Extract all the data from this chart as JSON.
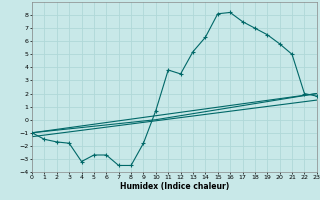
{
  "xlabel": "Humidex (Indice chaleur)",
  "bg_color": "#c8e8e8",
  "grid_color": "#b0d8d8",
  "line_color": "#006868",
  "xlim": [
    0,
    23
  ],
  "ylim": [
    -4,
    9
  ],
  "xticks": [
    0,
    1,
    2,
    3,
    4,
    5,
    6,
    7,
    8,
    9,
    10,
    11,
    12,
    13,
    14,
    15,
    16,
    17,
    18,
    19,
    20,
    21,
    22,
    23
  ],
  "yticks": [
    -4,
    -3,
    -2,
    -1,
    0,
    1,
    2,
    3,
    4,
    5,
    6,
    7,
    8
  ],
  "series1_x": [
    0,
    1,
    2,
    3,
    4,
    5,
    6,
    7,
    8,
    9,
    10,
    11,
    12,
    13,
    14,
    15,
    16,
    17,
    18,
    19,
    20,
    21,
    22,
    23
  ],
  "series1_y": [
    -1,
    -1.5,
    -1.7,
    -1.8,
    -3.2,
    -2.7,
    -2.7,
    -3.5,
    -3.5,
    -1.8,
    0.7,
    3.8,
    3.5,
    5.2,
    6.3,
    8.1,
    8.2,
    7.5,
    7.0,
    6.5,
    5.8,
    5.0,
    2.0,
    1.8
  ],
  "series2_x": [
    0,
    23
  ],
  "series2_y": [
    -1.0,
    2.0
  ],
  "series3_x": [
    0,
    10,
    23
  ],
  "series3_y": [
    -1.0,
    0.0,
    2.0
  ],
  "series4_x": [
    0,
    23
  ],
  "series4_y": [
    -1.3,
    1.5
  ]
}
